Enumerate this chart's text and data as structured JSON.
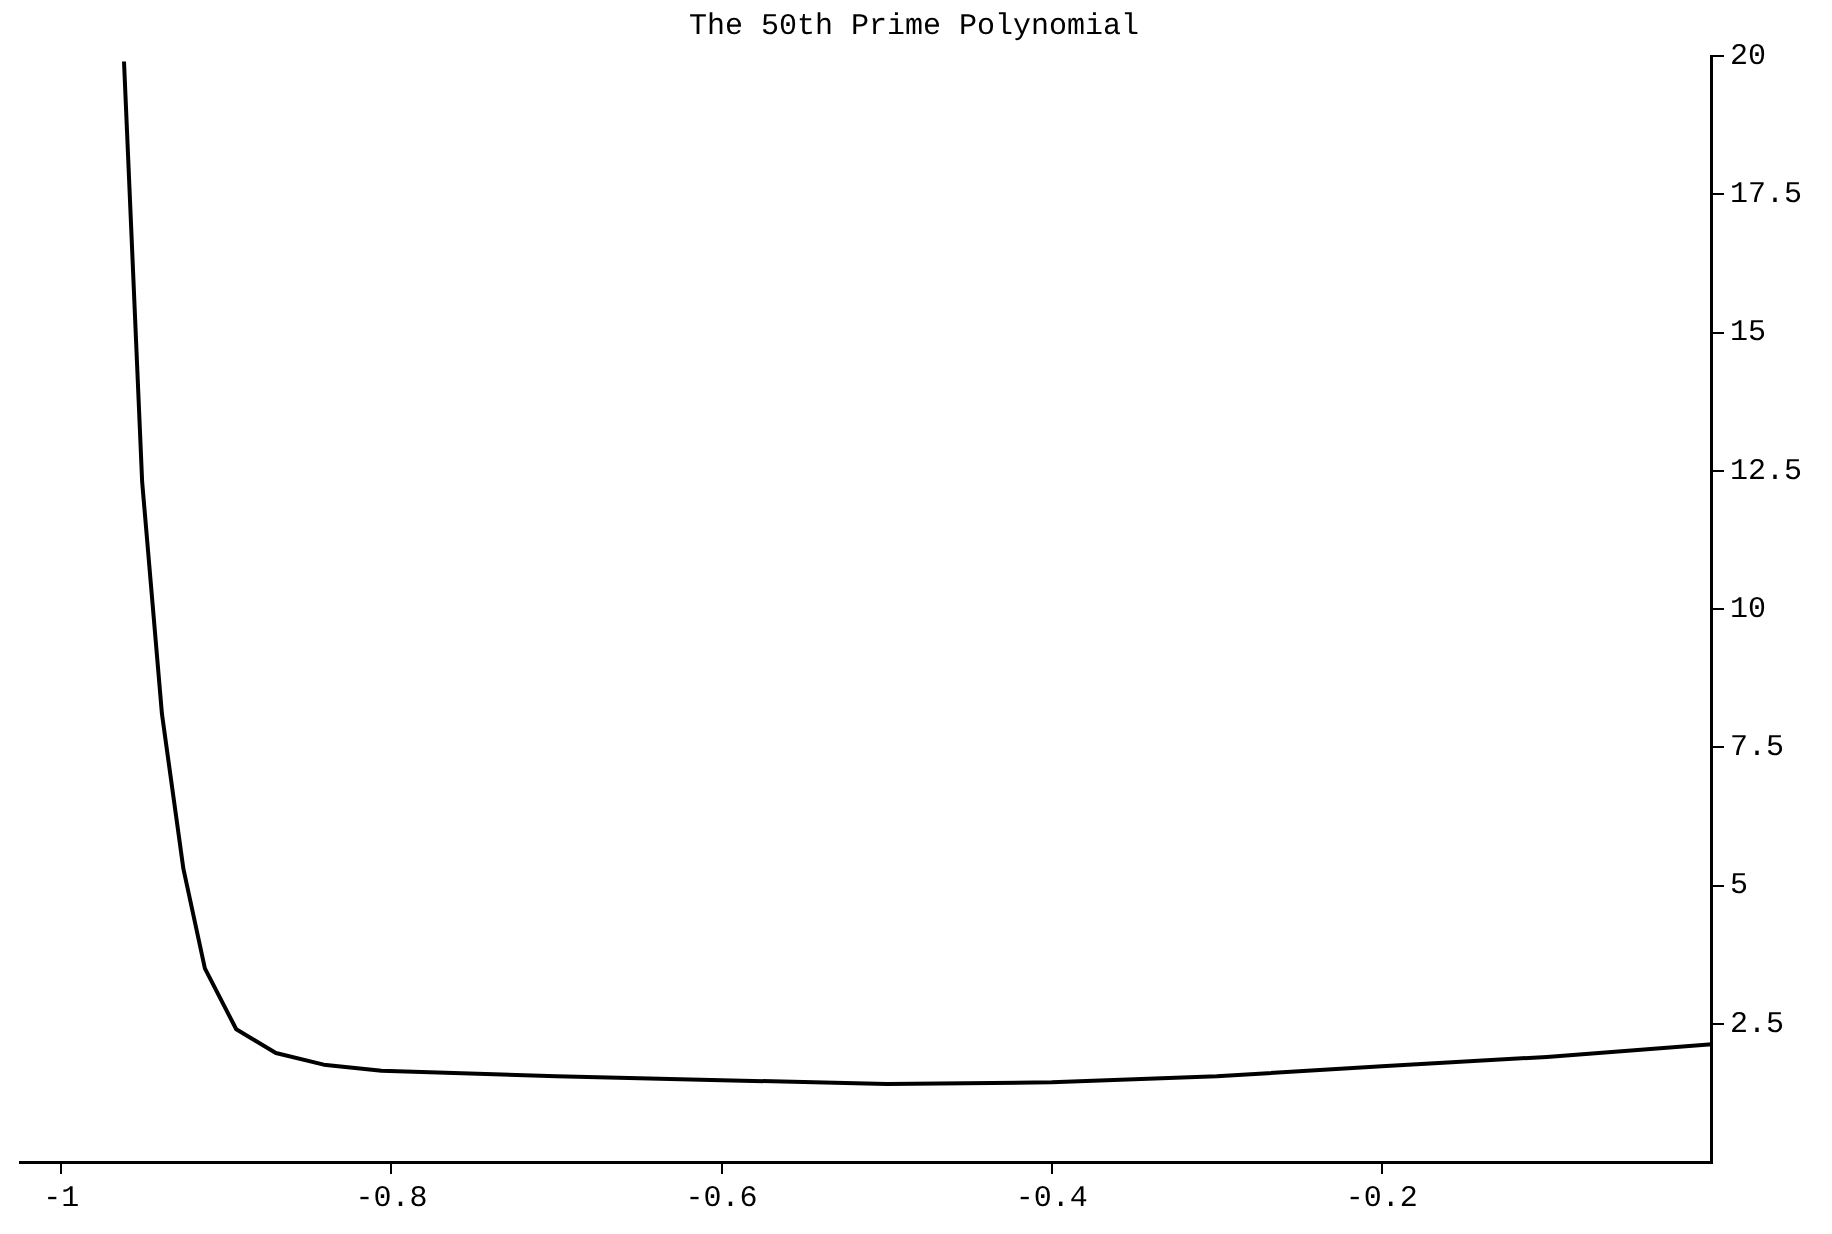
{
  "chart_data": {
    "type": "line",
    "title": "The 50th Prime Polynomial",
    "x": [
      -0.962,
      -0.951,
      -0.939,
      -0.926,
      -0.913,
      -0.894,
      -0.87,
      -0.841,
      -0.806,
      -0.7,
      -0.6,
      -0.5,
      -0.4,
      -0.3,
      -0.2,
      -0.1,
      0
    ],
    "series": [
      {
        "color": "#000000",
        "values": [
          19.9,
          12.3,
          8.1,
          5.3,
          3.5,
          2.4,
          1.97,
          1.76,
          1.65,
          1.55,
          1.48,
          1.41,
          1.44,
          1.55,
          1.73,
          1.9,
          2.13
        ]
      }
    ],
    "xlim": [
      -1.025,
      0
    ],
    "xticks": [
      -1,
      -0.8,
      -0.6,
      -0.4,
      -0.2
    ],
    "ylim": [
      0,
      20
    ],
    "yticks": [
      2.5,
      5,
      7.5,
      10,
      12.5,
      15,
      17.5,
      20
    ],
    "grid": false,
    "legend": false,
    "marker": "none",
    "line_style": "solid"
  }
}
